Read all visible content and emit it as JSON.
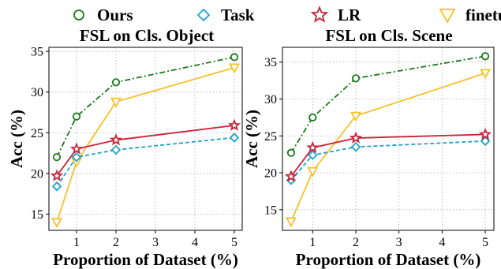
{
  "legend": [
    {
      "name": "Ours",
      "color": "#1a7a1a",
      "marker": "circle",
      "dash": "dashdot"
    },
    {
      "name": "Task",
      "color": "#1fa2c8",
      "marker": "diamond",
      "dash": "dashed"
    },
    {
      "name": "LR",
      "color": "#c8233a",
      "marker": "star",
      "dash": "solid"
    },
    {
      "name": "finetune",
      "color": "#f5c02a",
      "marker": "triangle-down",
      "dash": "solid"
    }
  ],
  "chart_data": [
    {
      "type": "line",
      "title": "FSL on Cls. Object",
      "xlabel": "Proportion of Dataset (%)",
      "ylabel": "Acc (%)",
      "x": [
        0.5,
        1,
        2,
        5
      ],
      "xticks": [
        "1",
        "2",
        "3",
        "4",
        "5"
      ],
      "yticks": [
        "15",
        "20",
        "25",
        "30",
        "35"
      ],
      "xlim": [
        0.3,
        5.2
      ],
      "ylim": [
        13,
        35.5
      ],
      "grid": true,
      "series": [
        {
          "name": "Ours",
          "values": [
            22.0,
            27.0,
            31.2,
            34.3
          ]
        },
        {
          "name": "Task",
          "values": [
            18.4,
            22.0,
            22.9,
            24.4
          ]
        },
        {
          "name": "LR",
          "values": [
            19.7,
            23.0,
            24.1,
            25.9
          ]
        },
        {
          "name": "finetune",
          "values": [
            14.0,
            21.4,
            28.8,
            33.0
          ]
        }
      ]
    },
    {
      "type": "line",
      "title": "FSL on Cls. Scene",
      "xlabel": "Proportion of Dataset (%)",
      "ylabel": "Acc (%)",
      "x": [
        0.5,
        1,
        2,
        5
      ],
      "xticks": [
        "1",
        "2",
        "3",
        "4",
        "5"
      ],
      "yticks": [
        "15",
        "20",
        "25",
        "30",
        "35"
      ],
      "xlim": [
        0.3,
        5.2
      ],
      "ylim": [
        12.2,
        37
      ],
      "grid": true,
      "series": [
        {
          "name": "Ours",
          "values": [
            22.7,
            27.5,
            32.8,
            35.8
          ]
        },
        {
          "name": "Task",
          "values": [
            19.0,
            22.4,
            23.5,
            24.3
          ]
        },
        {
          "name": "LR",
          "values": [
            19.5,
            23.4,
            24.7,
            25.2
          ]
        },
        {
          "name": "finetune",
          "values": [
            13.4,
            20.2,
            27.7,
            33.5
          ]
        }
      ]
    }
  ]
}
